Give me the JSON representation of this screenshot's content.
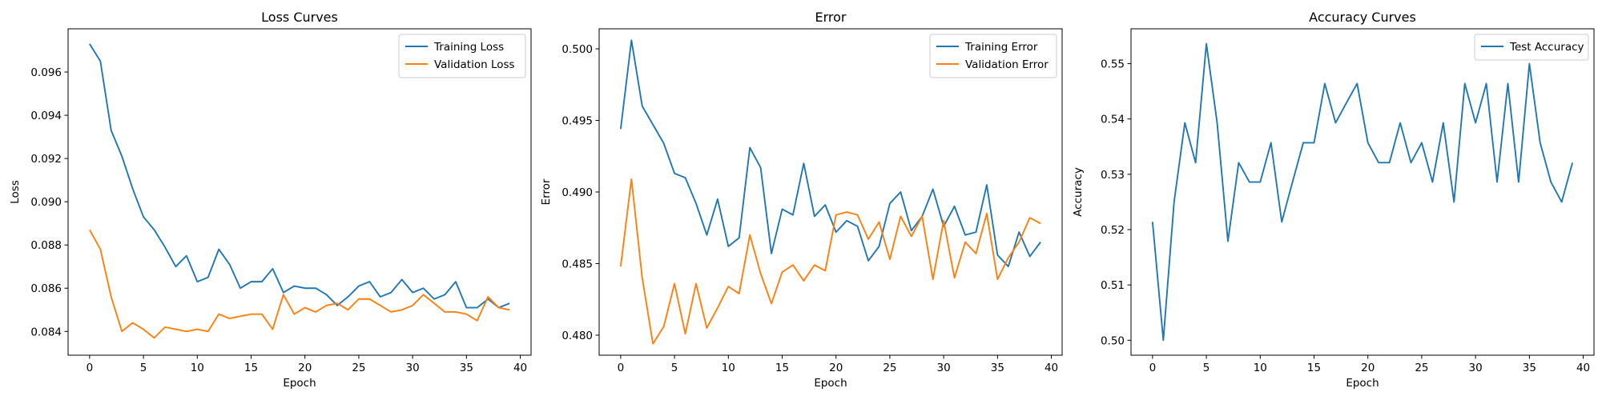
{
  "chart_data": [
    {
      "type": "line",
      "title": "Loss Curves",
      "xlabel": "Epoch",
      "ylabel": "Loss",
      "xlim": [
        -2,
        41
      ],
      "ylim": [
        0.0829,
        0.098
      ],
      "xticks": [
        0,
        5,
        10,
        15,
        20,
        25,
        30,
        35,
        40
      ],
      "yticks": [
        0.084,
        0.086,
        0.088,
        0.09,
        0.092,
        0.094,
        0.096
      ],
      "ytick_decimals": 3,
      "grid": false,
      "legend": "top-right",
      "x": [
        0,
        1,
        2,
        3,
        4,
        5,
        6,
        7,
        8,
        9,
        10,
        11,
        12,
        13,
        14,
        15,
        16,
        17,
        18,
        19,
        20,
        21,
        22,
        23,
        24,
        25,
        26,
        27,
        28,
        29,
        30,
        31,
        32,
        33,
        34,
        35,
        36,
        37,
        38,
        39
      ],
      "series": [
        {
          "name": "Training Loss",
          "color": "#1f77b4",
          "values": [
            0.0973,
            0.0965,
            0.0933,
            0.0921,
            0.0906,
            0.0893,
            0.0887,
            0.0879,
            0.087,
            0.0875,
            0.0863,
            0.0865,
            0.0878,
            0.0871,
            0.086,
            0.0863,
            0.0863,
            0.0869,
            0.0858,
            0.0861,
            0.086,
            0.086,
            0.0857,
            0.0852,
            0.0856,
            0.0861,
            0.0863,
            0.0856,
            0.0858,
            0.0864,
            0.0858,
            0.086,
            0.0855,
            0.0857,
            0.0863,
            0.0851,
            0.0851,
            0.0855,
            0.0851,
            0.0853
          ]
        },
        {
          "name": "Validation Loss",
          "color": "#ff7f0e",
          "values": [
            0.0887,
            0.0878,
            0.0856,
            0.084,
            0.0844,
            0.0841,
            0.0837,
            0.0842,
            0.0841,
            0.084,
            0.0841,
            0.084,
            0.0848,
            0.0846,
            0.0847,
            0.0848,
            0.0848,
            0.0841,
            0.0857,
            0.0848,
            0.0851,
            0.0849,
            0.0852,
            0.0853,
            0.085,
            0.0855,
            0.0855,
            0.0852,
            0.0849,
            0.085,
            0.0852,
            0.0857,
            0.0853,
            0.0849,
            0.0849,
            0.0848,
            0.0845,
            0.0856,
            0.0851,
            0.085
          ]
        }
      ]
    },
    {
      "type": "line",
      "title": "Error",
      "xlabel": "Epoch",
      "ylabel": "Error",
      "xlim": [
        -2,
        41
      ],
      "ylim": [
        0.4786,
        0.5014
      ],
      "xticks": [
        0,
        5,
        10,
        15,
        20,
        25,
        30,
        35,
        40
      ],
      "yticks": [
        0.48,
        0.485,
        0.49,
        0.495,
        0.5
      ],
      "ytick_decimals": 3,
      "grid": false,
      "legend": "top-right",
      "x": [
        0,
        1,
        2,
        3,
        4,
        5,
        6,
        7,
        8,
        9,
        10,
        11,
        12,
        13,
        14,
        15,
        16,
        17,
        18,
        19,
        20,
        21,
        22,
        23,
        24,
        25,
        26,
        27,
        28,
        29,
        30,
        31,
        32,
        33,
        34,
        35,
        36,
        37,
        38,
        39
      ],
      "series": [
        {
          "name": "Training Error",
          "color": "#1f77b4",
          "values": [
            0.4944,
            0.5006,
            0.496,
            0.4947,
            0.4934,
            0.4913,
            0.491,
            0.4892,
            0.487,
            0.4895,
            0.4862,
            0.4868,
            0.4931,
            0.4917,
            0.4857,
            0.4888,
            0.4884,
            0.492,
            0.4883,
            0.4891,
            0.4872,
            0.488,
            0.4876,
            0.4852,
            0.4862,
            0.4892,
            0.49,
            0.4873,
            0.4883,
            0.4902,
            0.4876,
            0.489,
            0.487,
            0.4872,
            0.4905,
            0.4856,
            0.4848,
            0.4872,
            0.4855,
            0.4865
          ]
        },
        {
          "name": "Validation Error",
          "color": "#ff7f0e",
          "values": [
            0.4848,
            0.4909,
            0.484,
            0.4794,
            0.4806,
            0.4836,
            0.4801,
            0.4836,
            0.4805,
            0.4819,
            0.4834,
            0.4829,
            0.487,
            0.4843,
            0.4822,
            0.4844,
            0.4849,
            0.4838,
            0.4849,
            0.4845,
            0.4884,
            0.4886,
            0.4884,
            0.4867,
            0.4879,
            0.4853,
            0.4883,
            0.4869,
            0.4883,
            0.4839,
            0.488,
            0.484,
            0.4865,
            0.4857,
            0.4885,
            0.4839,
            0.4854,
            0.4865,
            0.4882,
            0.4878
          ]
        }
      ]
    },
    {
      "type": "line",
      "title": "Accuracy Curves",
      "xlabel": "Epoch",
      "ylabel": "Accuracy",
      "xlim": [
        -2,
        41
      ],
      "ylim": [
        0.4973,
        0.5563
      ],
      "xticks": [
        0,
        5,
        10,
        15,
        20,
        25,
        30,
        35,
        40
      ],
      "yticks": [
        0.5,
        0.51,
        0.52,
        0.53,
        0.54,
        0.55
      ],
      "ytick_decimals": 2,
      "grid": false,
      "legend": "top-right",
      "x": [
        0,
        1,
        2,
        3,
        4,
        5,
        6,
        7,
        8,
        9,
        10,
        11,
        12,
        13,
        14,
        15,
        16,
        17,
        18,
        19,
        20,
        21,
        22,
        23,
        24,
        25,
        26,
        27,
        28,
        29,
        30,
        31,
        32,
        33,
        34,
        35,
        36,
        37,
        38,
        39
      ],
      "series": [
        {
          "name": "Test Accuracy",
          "color": "#1f77b4",
          "values": [
            0.5214,
            0.5,
            0.525,
            0.5393,
            0.5321,
            0.5536,
            0.5393,
            0.5179,
            0.5321,
            0.5286,
            0.5286,
            0.5357,
            0.5214,
            0.5286,
            0.5357,
            0.5357,
            0.5464,
            0.5393,
            0.5429,
            0.5464,
            0.5357,
            0.5321,
            0.5321,
            0.5393,
            0.5321,
            0.5357,
            0.5286,
            0.5393,
            0.525,
            0.5464,
            0.5393,
            0.5464,
            0.5286,
            0.5464,
            0.5286,
            0.55,
            0.5357,
            0.5286,
            0.525,
            0.5321
          ]
        }
      ]
    }
  ]
}
